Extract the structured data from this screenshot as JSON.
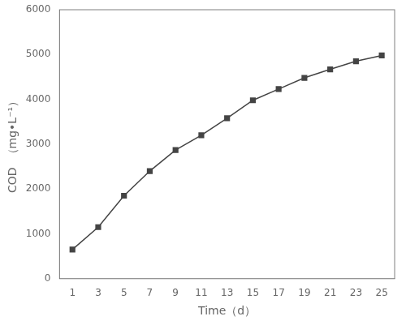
{
  "chart_data": {
    "type": "line",
    "xlabel": "Time（d）",
    "ylabel": "COD  （mg•L⁻¹）",
    "x": [
      1,
      3,
      5,
      7,
      9,
      11,
      13,
      15,
      17,
      19,
      21,
      23,
      25
    ],
    "values": [
      650,
      1150,
      1850,
      2400,
      2870,
      3200,
      3580,
      3980,
      4230,
      4480,
      4670,
      4850,
      4980
    ],
    "color": "#444444",
    "marker": "square",
    "xlim": [
      0,
      26
    ],
    "xticks": [
      1,
      3,
      5,
      7,
      9,
      11,
      13,
      15,
      17,
      19,
      21,
      23,
      25
    ],
    "ylim": [
      0,
      6000
    ],
    "yticks": [
      0,
      1000,
      2000,
      3000,
      4000,
      5000,
      6000
    ],
    "grid": false
  }
}
